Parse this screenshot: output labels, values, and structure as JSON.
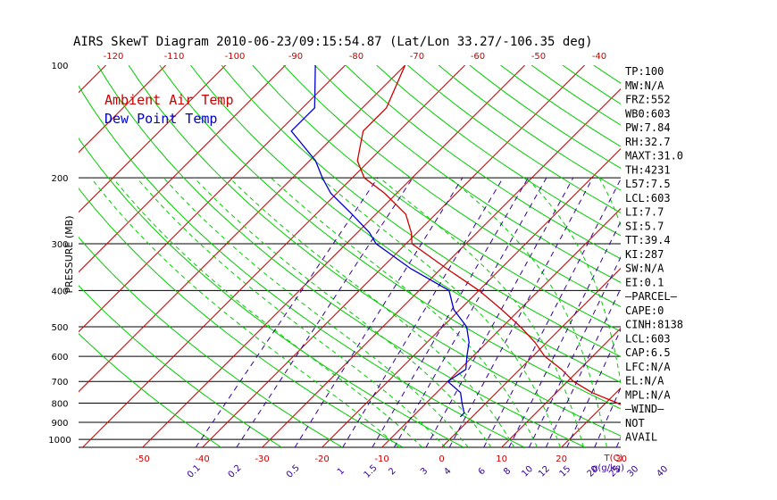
{
  "title": "AIRS SkewT Diagram 2010-06-23/09:15:54.87 (Lat/Lon 33.27/-106.35 deg)",
  "legend": {
    "ambient": "Ambient Air Temp",
    "dewpoint": "Dew Point Temp"
  },
  "colors": {
    "ambient": "#cc0000",
    "dewpoint": "#0000cc",
    "isotherm": "#cc0000",
    "dry_adiabat": "#00cc00",
    "moist_adiabat": "#00cc00",
    "mixing_ratio": "#330099",
    "isobar": "#000000"
  },
  "indices": [
    "TP:100",
    "MW:N/A",
    "FRZ:552",
    "WB0:603",
    "PW:7.84",
    "RH:32.7",
    "MAXT:31.0",
    "TH:4231",
    "L57:7.5",
    "LCL:603",
    "LI:7.7",
    "SI:5.7",
    "TT:39.4",
    "KI:287",
    "SW:N/A",
    "EI:0.1",
    "—PARCEL—",
    "CAPE:0",
    "CINH:8138",
    "LCL:603",
    "CAP:6.5",
    "LFC:N/A",
    "EL:N/A",
    "MPL:N/A",
    "—WIND—",
    "NOT",
    "AVAIL"
  ],
  "chart_data": {
    "type": "line",
    "title": "AIRS SkewT Diagram 2010-06-23/09:15:54.87 (Lat/Lon 33.27/-106.35 deg)",
    "xlabel": "T(C)",
    "ylabel": "PRESSURE (MB)",
    "yscale": "log",
    "ylim": [
      1050,
      100
    ],
    "pressure_ticks": [
      100,
      200,
      300,
      400,
      500,
      600,
      700,
      800,
      900,
      1000
    ],
    "isobars": [
      200,
      300,
      400,
      500,
      600,
      700,
      800,
      900,
      1000
    ],
    "bottom_temp_ticks": [
      -50,
      -40,
      -30,
      -20,
      -10,
      0,
      10,
      20,
      30
    ],
    "top_temp_ticks": [
      -120,
      -110,
      -100,
      -90,
      -80,
      -70,
      -60,
      -50,
      -40
    ],
    "mixing_ratio_labels": [
      "0.1",
      "0.2",
      "0.5",
      "1",
      "1.5",
      "2",
      "3",
      "4",
      "6",
      "8",
      "10",
      "12",
      "15",
      "20",
      "25",
      "30",
      "40"
    ],
    "mixing_ratio_unit": "g(g/kg)",
    "temp_unit_label": "T(C)",
    "legend_position": "top-left",
    "grid": true,
    "series": [
      {
        "name": "Ambient Air Temp",
        "points": [
          [
            100,
            -70
          ],
          [
            130,
            -66
          ],
          [
            150,
            -66
          ],
          [
            180,
            -62
          ],
          [
            200,
            -58
          ],
          [
            220,
            -52
          ],
          [
            250,
            -45
          ],
          [
            280,
            -41
          ],
          [
            300,
            -39
          ],
          [
            350,
            -29
          ],
          [
            400,
            -20
          ],
          [
            450,
            -13
          ],
          [
            500,
            -7
          ],
          [
            550,
            -2
          ],
          [
            600,
            2
          ],
          [
            650,
            7
          ],
          [
            700,
            11
          ],
          [
            750,
            16
          ],
          [
            800,
            22
          ],
          [
            850,
            27
          ],
          [
            870,
            30
          ]
        ]
      },
      {
        "name": "Dew Point Temp",
        "points": [
          [
            100,
            -85
          ],
          [
            130,
            -78
          ],
          [
            150,
            -78
          ],
          [
            180,
            -69
          ],
          [
            200,
            -65
          ],
          [
            220,
            -61
          ],
          [
            250,
            -54
          ],
          [
            280,
            -48
          ],
          [
            300,
            -45
          ],
          [
            350,
            -35
          ],
          [
            400,
            -25
          ],
          [
            450,
            -21
          ],
          [
            500,
            -16
          ],
          [
            550,
            -13
          ],
          [
            600,
            -11
          ],
          [
            650,
            -9
          ],
          [
            700,
            -10
          ],
          [
            750,
            -6
          ],
          [
            800,
            -4
          ],
          [
            850,
            -2
          ],
          [
            870,
            -2
          ]
        ]
      }
    ]
  }
}
